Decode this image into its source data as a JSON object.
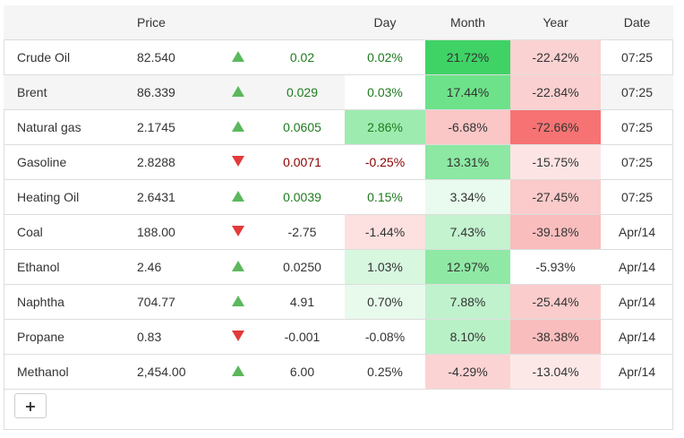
{
  "columns": [
    "",
    "Price",
    "",
    "",
    "Day",
    "Month",
    "Year",
    "Date"
  ],
  "rows": [
    {
      "name": "Crude Oil",
      "price": "82.540",
      "dir": "up",
      "change": "0.02",
      "day": "0.02%",
      "month": "21.72%",
      "year": "-22.42%",
      "date": "07:25",
      "day_bg": "",
      "month_bg": "#3fd365",
      "year_bg": "#fbd2d2",
      "change_class": "up",
      "day_class": "up"
    },
    {
      "name": "Brent",
      "price": "86.339",
      "dir": "up",
      "change": "0.029",
      "day": "0.03%",
      "month": "17.44%",
      "year": "-22.84%",
      "date": "07:25",
      "day_bg": "#ffffff",
      "month_bg": "#6ee28a",
      "year_bg": "#fbd0d0",
      "change_class": "up",
      "day_class": "up"
    },
    {
      "name": "Natural gas",
      "price": "2.1745",
      "dir": "up",
      "change": "0.0605",
      "day": "2.86%",
      "month": "-6.68%",
      "year": "-72.66%",
      "date": "07:25",
      "day_bg": "#9eebb0",
      "month_bg": "#fbc6c6",
      "year_bg": "#f77373",
      "change_class": "up",
      "day_class": "up"
    },
    {
      "name": "Gasoline",
      "price": "2.8288",
      "dir": "down",
      "change": "0.0071",
      "day": "-0.25%",
      "month": "13.31%",
      "year": "-15.75%",
      "date": "07:25",
      "day_bg": "",
      "month_bg": "#8ce8a2",
      "year_bg": "#fde4e4",
      "change_class": "down",
      "day_class": "down"
    },
    {
      "name": "Heating Oil",
      "price": "2.6431",
      "dir": "up",
      "change": "0.0039",
      "day": "0.15%",
      "month": "3.34%",
      "year": "-27.45%",
      "date": "07:25",
      "day_bg": "",
      "month_bg": "#e9fbee",
      "year_bg": "#fbcaca",
      "change_class": "up",
      "day_class": "up"
    },
    {
      "name": "Coal",
      "price": "188.00",
      "dir": "down",
      "change": "-2.75",
      "day": "-1.44%",
      "month": "7.43%",
      "year": "-39.18%",
      "date": "Apr/14",
      "day_bg": "#fde0e0",
      "month_bg": "#c3f3cf",
      "year_bg": "#fabdbd",
      "change_class": "neutral",
      "day_class": "neutral"
    },
    {
      "name": "Ethanol",
      "price": "2.46",
      "dir": "up",
      "change": "0.0250",
      "day": "1.03%",
      "month": "12.97%",
      "year": "-5.93%",
      "date": "Apr/14",
      "day_bg": "#d7f7df",
      "month_bg": "#8fe9a5",
      "year_bg": "#ffffff",
      "change_class": "neutral",
      "day_class": "neutral"
    },
    {
      "name": "Naphtha",
      "price": "704.77",
      "dir": "up",
      "change": "4.91",
      "day": "0.70%",
      "month": "7.88%",
      "year": "-25.44%",
      "date": "Apr/14",
      "day_bg": "#e7faec",
      "month_bg": "#c0f2cd",
      "year_bg": "#fbcccc",
      "change_class": "neutral",
      "day_class": "neutral"
    },
    {
      "name": "Propane",
      "price": "0.83",
      "dir": "down",
      "change": "-0.001",
      "day": "-0.08%",
      "month": "8.10%",
      "year": "-38.38%",
      "date": "Apr/14",
      "day_bg": "",
      "month_bg": "#b9f1c7",
      "year_bg": "#fabdbd",
      "change_class": "neutral",
      "day_class": "neutral"
    },
    {
      "name": "Methanol",
      "price": "2,454.00",
      "dir": "up",
      "change": "6.00",
      "day": "0.25%",
      "month": "-4.29%",
      "year": "-13.04%",
      "date": "Apr/14",
      "day_bg": "",
      "month_bg": "#fcd3d3",
      "year_bg": "#fde8e8",
      "change_class": "neutral",
      "day_class": "neutral"
    }
  ],
  "add_button": {
    "label": "+",
    "icon": "plus-icon"
  }
}
